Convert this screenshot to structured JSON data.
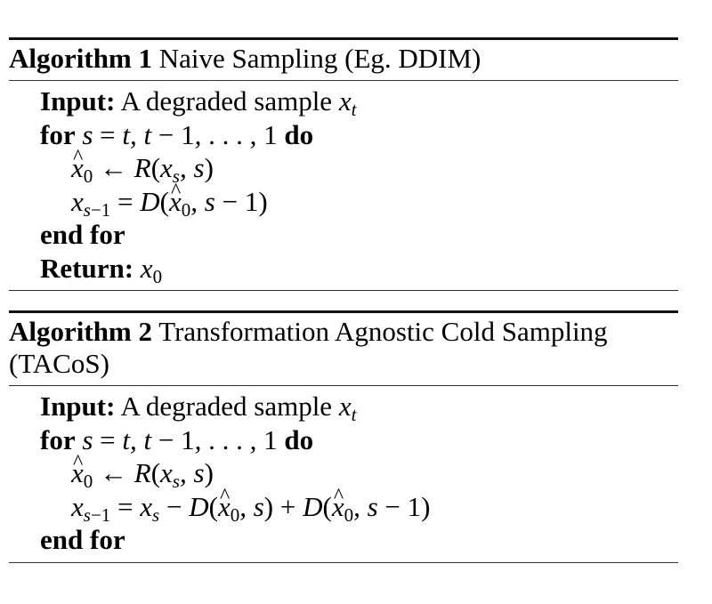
{
  "algorithms": [
    {
      "label": "Algorithm 1",
      "title": "Naive Sampling (Eg. DDIM)",
      "input_keyword": "Input:",
      "input_text": "A degraded sample",
      "for_keyword": "for",
      "do_keyword": "do",
      "end_for": "end for",
      "return_keyword": "Return:"
    },
    {
      "label": "Algorithm 2",
      "title": "Transformation Agnostic Cold Sampling (TACoS)",
      "input_keyword": "Input:",
      "input_text": "A degraded sample",
      "for_keyword": "for",
      "do_keyword": "do",
      "end_for": "end for"
    }
  ]
}
